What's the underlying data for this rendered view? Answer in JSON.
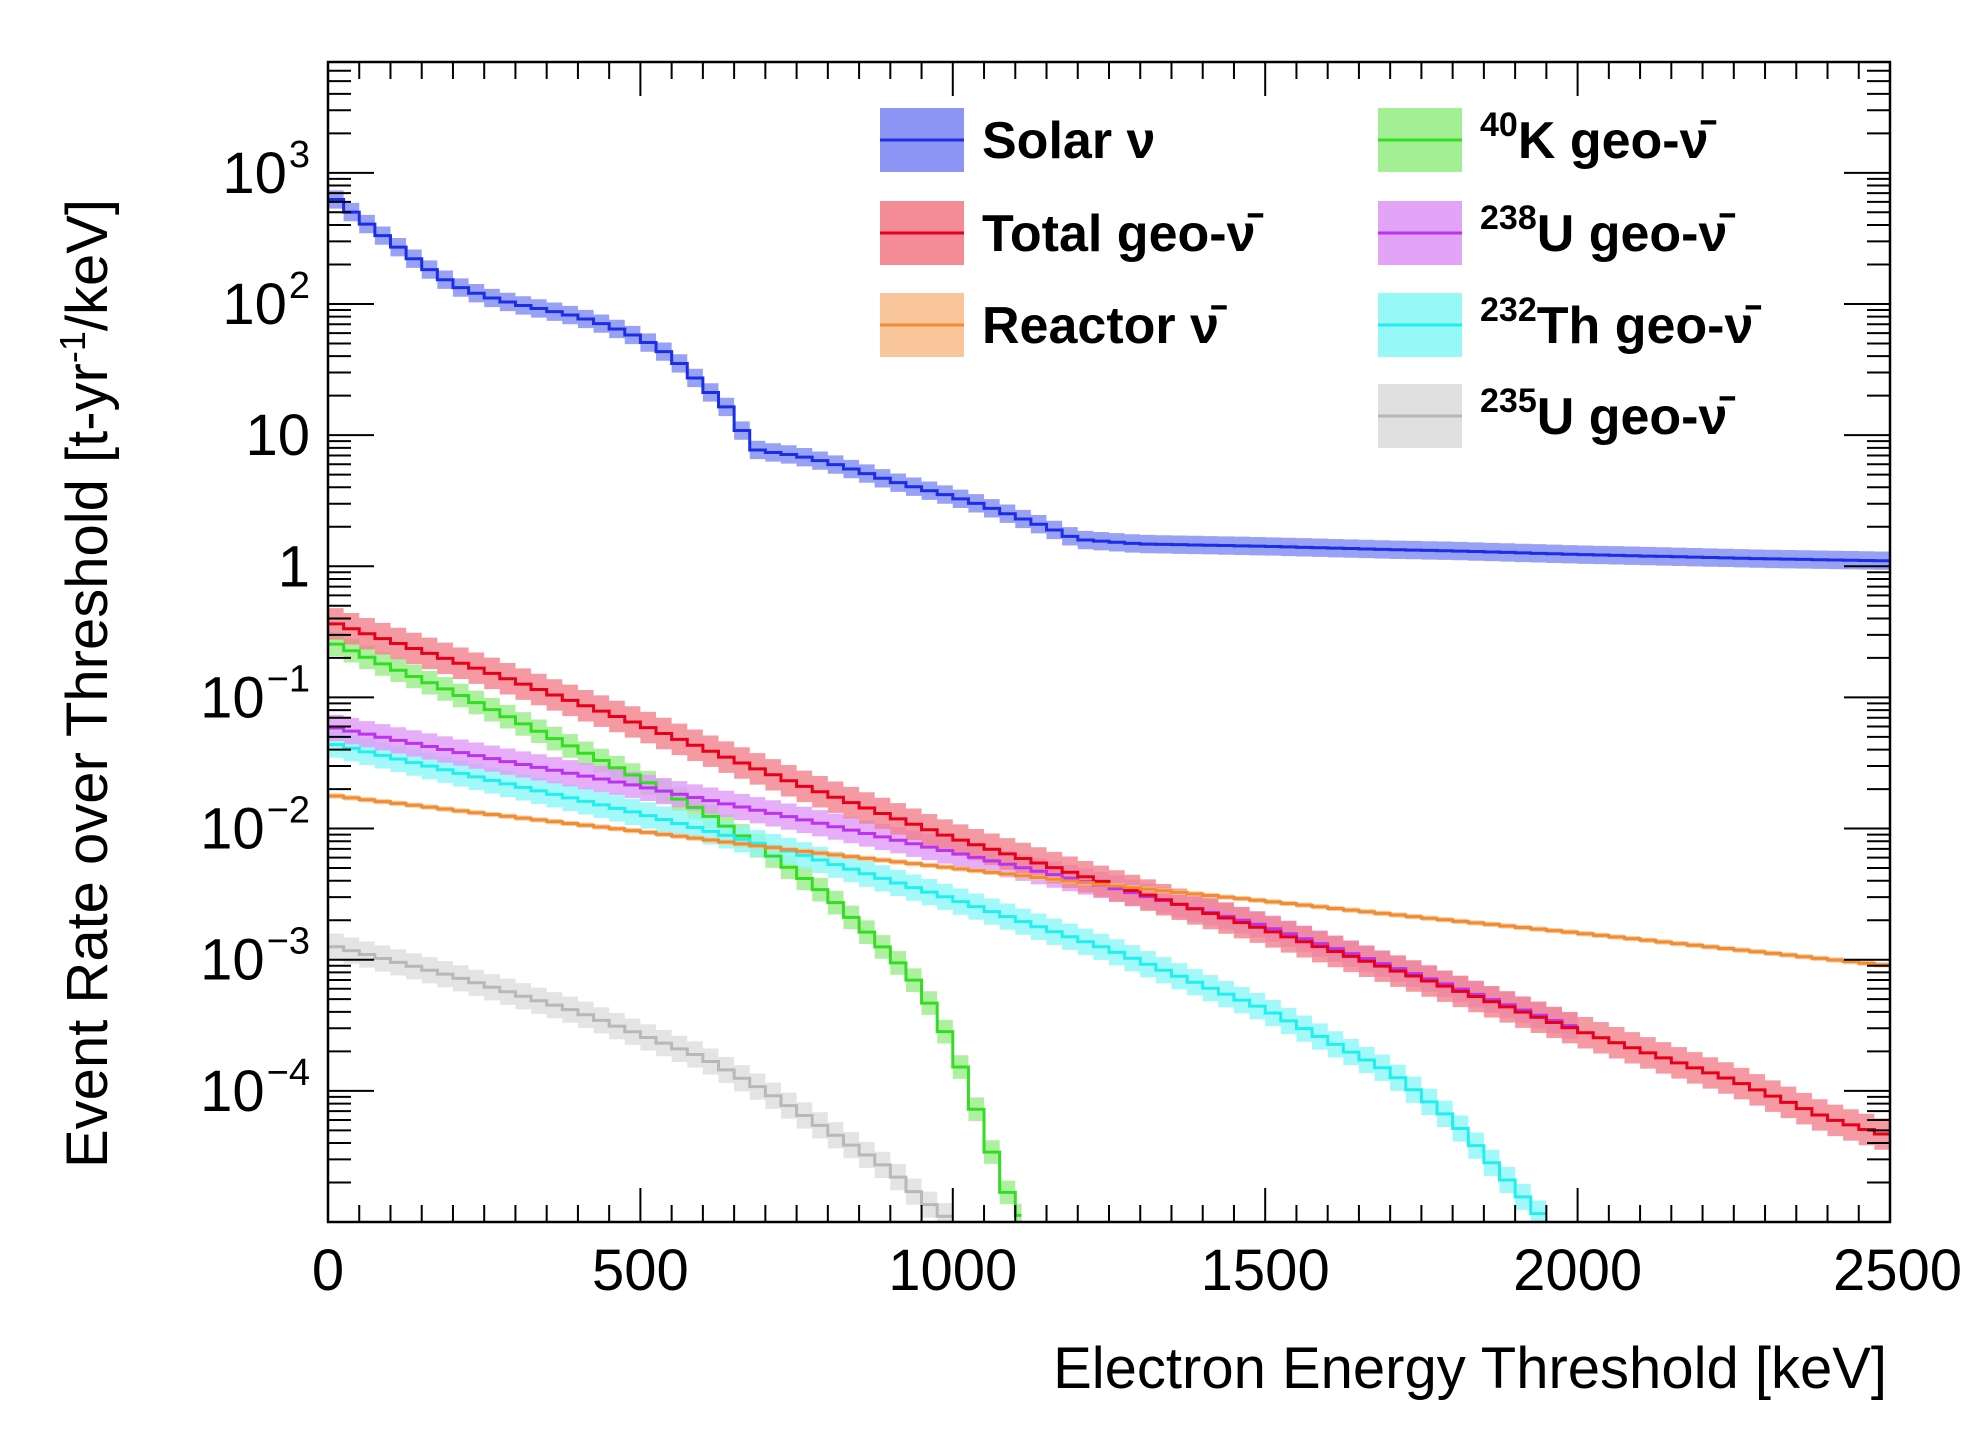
{
  "chart_data": {
    "type": "line",
    "xlabel": "Electron Energy Threshold [keV]",
    "ylabel": "Event Rate over Threshold [t-yr",
    "ylabel_sup": "-1",
    "ylabel_end": "/keV]",
    "xlim": [
      0,
      2500
    ],
    "ylim": [
      1e-05,
      7000
    ],
    "yscale": "log",
    "grid": false,
    "legend_position": "top-right",
    "x_ticks": [
      0,
      500,
      1000,
      1500,
      2000,
      2500
    ],
    "x_tick_labels": [
      "0",
      "500",
      "1000",
      "1500",
      "2000",
      "2500"
    ],
    "y_ticks": [
      {
        "value": 1000,
        "base": "10",
        "exp": "3"
      },
      {
        "value": 100,
        "base": "10",
        "exp": "2"
      },
      {
        "value": 10,
        "base": "10",
        "exp": ""
      },
      {
        "value": 1,
        "base": "1",
        "exp": ""
      },
      {
        "value": 0.1,
        "base": "10",
        "exp": "−1"
      },
      {
        "value": 0.01,
        "base": "10",
        "exp": "−2"
      },
      {
        "value": 0.001,
        "base": "10",
        "exp": "−3"
      },
      {
        "value": 0.0001,
        "base": "10",
        "exp": "−4"
      }
    ],
    "series": [
      {
        "name": "Solar ν",
        "label_sup": "",
        "label_main": "Solar ν",
        "line_color": "#1a2ee6",
        "band_color": "#7f8af2",
        "band_width": 0.07,
        "x": [
          0,
          25,
          50,
          100,
          150,
          200,
          250,
          300,
          350,
          400,
          450,
          500,
          550,
          600,
          640,
          660,
          670,
          700,
          750,
          800,
          850,
          900,
          950,
          1000,
          1050,
          1100,
          1150,
          1200,
          1300,
          1400,
          1500,
          1600,
          1700,
          1800,
          1900,
          2000,
          2100,
          2200,
          2300,
          2400,
          2500
        ],
        "y": [
          700,
          560,
          450,
          300,
          200,
          140,
          115,
          100,
          90,
          80,
          68,
          55,
          40,
          24,
          16,
          12,
          8,
          7.5,
          7,
          6.2,
          5.3,
          4.5,
          3.9,
          3.4,
          2.9,
          2.4,
          2,
          1.6,
          1.48,
          1.45,
          1.42,
          1.38,
          1.34,
          1.31,
          1.27,
          1.23,
          1.2,
          1.17,
          1.14,
          1.12,
          1.1
        ]
      },
      {
        "name": "Total geo-ν̄",
        "label_sup": "",
        "label_main": "Total geo-ν̄",
        "line_color": "#e6001a",
        "band_color": "#f27f8c",
        "band_width": 0.12,
        "x": [
          0,
          250,
          500,
          750,
          1000,
          1250,
          1500,
          1750,
          2000,
          2250,
          2400,
          2500
        ],
        "y": [
          0.38,
          0.16,
          0.062,
          0.022,
          0.0085,
          0.0038,
          0.0017,
          0.00072,
          0.00029,
          0.00012,
          6.2e-05,
          4.5e-05
        ]
      },
      {
        "name": "Reactor ν̄",
        "label_sup": "",
        "label_main": "Reactor ν̄",
        "line_color": "#f28c33",
        "band_color": "#f7c08f",
        "band_width": 0.02,
        "x": [
          0,
          250,
          500,
          750,
          1000,
          1250,
          1500,
          1750,
          2000,
          2250,
          2500
        ],
        "y": [
          0.018,
          0.013,
          0.0095,
          0.0068,
          0.005,
          0.0037,
          0.0028,
          0.0021,
          0.0016,
          0.0012,
          0.0009
        ]
      },
      {
        "name": "40K geo-ν̄",
        "label_sup": "40",
        "label_main": "K geo-ν̄",
        "line_color": "#33dd22",
        "band_color": "#99ee88",
        "band_width": 0.09,
        "x": [
          0,
          100,
          200,
          300,
          400,
          500,
          600,
          700,
          800,
          900,
          950,
          1000,
          1050,
          1080,
          1110
        ],
        "y": [
          0.27,
          0.17,
          0.11,
          0.067,
          0.04,
          0.024,
          0.0135,
          0.0068,
          0.0031,
          0.0011,
          0.0006,
          0.00022,
          5e-05,
          2e-05,
          1e-05
        ]
      },
      {
        "name": "238U geo-ν̄",
        "label_sup": "238",
        "label_main": "U geo-ν̄",
        "line_color": "#bb33ee",
        "band_color": "#e09af7",
        "band_width": 0.1,
        "x": [
          0,
          250,
          500,
          750,
          1000,
          1250,
          1500,
          1750,
          2000
        ],
        "y": [
          0.06,
          0.035,
          0.021,
          0.012,
          0.0066,
          0.0036,
          0.0018,
          0.00075,
          0.0003
        ]
      },
      {
        "name": "232Th geo-ν̄",
        "label_sup": "232",
        "label_main": "Th geo-ν̄",
        "line_color": "#22eeee",
        "band_color": "#8cf7f7",
        "band_width": 0.1,
        "x": [
          0,
          250,
          500,
          750,
          1000,
          1250,
          1500,
          1700,
          1800,
          1900,
          1950
        ],
        "y": [
          0.045,
          0.024,
          0.013,
          0.0065,
          0.0029,
          0.0012,
          0.00042,
          0.00014,
          6e-05,
          1.8e-05,
          1e-05
        ]
      },
      {
        "name": "235U geo-ν̄",
        "label_sup": "235",
        "label_main": "U geo-ν̄",
        "line_color": "#b8b8b8",
        "band_color": "#dddddd",
        "band_width": 0.1,
        "x": [
          0,
          200,
          400,
          600,
          700,
          800,
          900,
          950,
          1000
        ],
        "y": [
          0.0013,
          0.00075,
          0.0004,
          0.00018,
          0.0001,
          5e-05,
          2.5e-05,
          1.5e-05,
          1e-05
        ]
      }
    ]
  }
}
